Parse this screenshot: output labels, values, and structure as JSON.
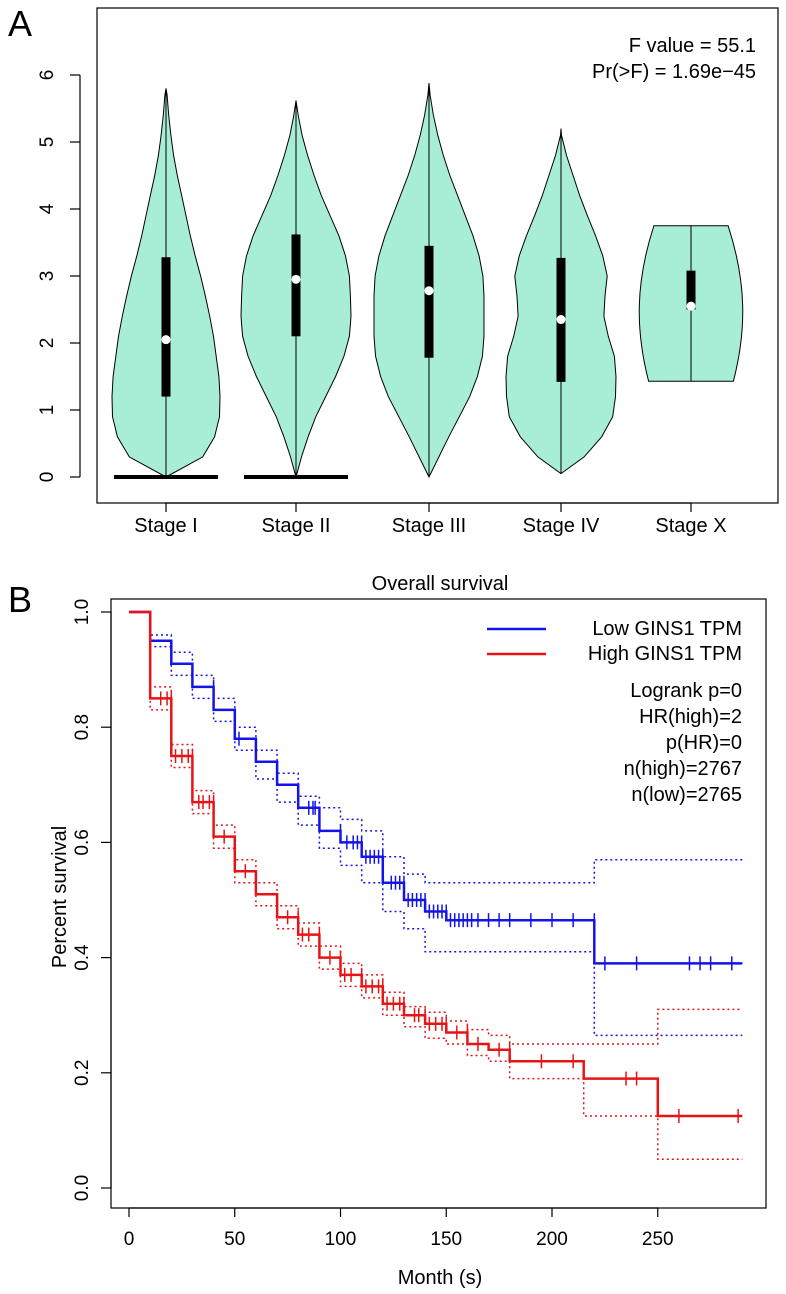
{
  "panels": {
    "a": {
      "label": "A"
    },
    "b": {
      "label": "B"
    }
  },
  "chart_data": [
    {
      "type": "violin",
      "title": "",
      "xlabel": "",
      "ylabel": "",
      "ylim": [
        0,
        6
      ],
      "yticks": [
        "0",
        "1",
        "2",
        "3",
        "4",
        "5",
        "6"
      ],
      "categories": [
        "Stage I",
        "Stage II",
        "Stage III",
        "Stage IV",
        "Stage X"
      ],
      "fill_color": "#a8eed6",
      "annotations": [
        "F value = 55.1",
        "Pr(>F) = 1.69e−45"
      ],
      "stats": [
        {
          "median": 2.05,
          "q1": 1.2,
          "q3": 3.28,
          "min": 0.0,
          "max": 5.8
        },
        {
          "median": 2.95,
          "q1": 2.1,
          "q3": 3.62,
          "min": 0.0,
          "max": 5.62
        },
        {
          "median": 2.78,
          "q1": 1.78,
          "q3": 3.45,
          "min": 0.0,
          "max": 5.88
        },
        {
          "median": 2.35,
          "q1": 1.42,
          "q3": 3.27,
          "min": 0.05,
          "max": 5.2
        },
        {
          "median": 2.55,
          "q1": 2.5,
          "q3": 3.08,
          "min": 1.43,
          "max": 3.75
        }
      ],
      "density_y": [
        0,
        0.3,
        0.6,
        0.9,
        1.2,
        1.5,
        1.8,
        2.1,
        2.4,
        2.7,
        3.0,
        3.3,
        3.6,
        3.9,
        4.2,
        4.5,
        4.8,
        5.1,
        5.4,
        5.7,
        6.0
      ],
      "density": [
        [
          0.5,
          0.68,
          0.9,
          0.99,
          1.0,
          0.98,
          0.93,
          0.88,
          0.81,
          0.73,
          0.64,
          0.54,
          0.45,
          0.37,
          0.29,
          0.21,
          0.14,
          0.09,
          0.05,
          0.02,
          0
        ],
        [
          0,
          0.1,
          0.22,
          0.36,
          0.54,
          0.72,
          0.87,
          0.97,
          1.0,
          0.99,
          0.97,
          0.9,
          0.78,
          0.62,
          0.46,
          0.33,
          0.21,
          0.11,
          0.04,
          0,
          0
        ],
        [
          0,
          0.18,
          0.36,
          0.55,
          0.74,
          0.88,
          0.97,
          1.0,
          1.0,
          1.0,
          0.98,
          0.91,
          0.8,
          0.66,
          0.52,
          0.38,
          0.26,
          0.16,
          0.08,
          0.02,
          0
        ],
        [
          0.05,
          0.42,
          0.74,
          0.94,
          0.99,
          1.0,
          0.97,
          0.86,
          0.78,
          0.8,
          0.84,
          0.76,
          0.63,
          0.48,
          0.34,
          0.22,
          0.1,
          0.01,
          0,
          0,
          0
        ],
        [
          0,
          0,
          0,
          0,
          0,
          0.84,
          0.79,
          0.72,
          0.87,
          0.99,
          0.99,
          0.85,
          0.71,
          0,
          0,
          0,
          0,
          0,
          0,
          0,
          0
        ]
      ],
      "baseline_bars": [
        true,
        true,
        false,
        false,
        false
      ]
    },
    {
      "type": "line",
      "subtype": "kaplan-meier",
      "title": "Overall survival",
      "xlabel": "Month (s)",
      "ylabel": "Percent survival",
      "xlim": [
        0,
        290
      ],
      "ylim": [
        0,
        1
      ],
      "xticks": [
        "0",
        "50",
        "100",
        "150",
        "200",
        "250"
      ],
      "yticks": [
        "0.0",
        "0.2",
        "0.4",
        "0.6",
        "0.8",
        "1.0"
      ],
      "legend_position": "top-right",
      "legend_text": [
        "Logrank p=0",
        "HR(high)=2",
        "p(HR)=0",
        "n(high)=2767",
        "n(low)=2765"
      ],
      "series": [
        {
          "name": "Low GINS1 TPM",
          "color": "#1414e6",
          "x": [
            0,
            10,
            20,
            30,
            40,
            50,
            60,
            70,
            80,
            90,
            100,
            110,
            120,
            130,
            140,
            150,
            160,
            170,
            180,
            190,
            200,
            210,
            220,
            230,
            240,
            250,
            260,
            270,
            280,
            290
          ],
          "y": [
            1.0,
            0.95,
            0.91,
            0.87,
            0.83,
            0.78,
            0.74,
            0.7,
            0.66,
            0.62,
            0.6,
            0.575,
            0.53,
            0.5,
            0.48,
            0.465,
            0.465,
            0.465,
            0.465,
            0.465,
            0.465,
            0.465,
            0.39,
            0.39,
            0.39,
            0.39,
            0.39,
            0.39,
            0.39,
            0.39
          ],
          "upper": [
            1.0,
            0.96,
            0.93,
            0.89,
            0.85,
            0.8,
            0.76,
            0.72,
            0.68,
            0.66,
            0.64,
            0.62,
            0.575,
            0.545,
            0.53,
            0.53,
            0.53,
            0.53,
            0.53,
            0.53,
            0.53,
            0.53,
            0.57,
            0.57,
            0.57,
            0.57,
            0.57,
            0.57,
            0.57,
            0.57
          ],
          "lower": [
            1.0,
            0.94,
            0.89,
            0.85,
            0.81,
            0.76,
            0.71,
            0.67,
            0.63,
            0.59,
            0.56,
            0.53,
            0.48,
            0.45,
            0.41,
            0.41,
            0.41,
            0.41,
            0.41,
            0.41,
            0.41,
            0.41,
            0.265,
            0.265,
            0.265,
            0.265,
            0.265,
            0.265,
            0.265,
            0.265
          ],
          "censor_x": [
            40,
            52,
            85,
            87,
            88,
            100,
            103,
            106,
            108,
            110,
            112,
            114,
            116,
            118,
            120,
            124,
            126,
            128,
            130,
            132,
            134,
            136,
            138,
            140,
            142,
            144,
            146,
            148,
            150,
            152,
            154,
            156,
            158,
            160,
            162,
            165,
            170,
            175,
            180,
            190,
            200,
            210,
            220,
            225,
            240,
            265,
            270,
            275,
            285
          ]
        },
        {
          "name": "High GINS1 TPM",
          "color": "#e61414",
          "x": [
            0,
            10,
            20,
            30,
            40,
            50,
            60,
            70,
            80,
            90,
            100,
            110,
            120,
            130,
            140,
            150,
            160,
            170,
            180,
            190,
            200,
            210,
            215,
            220,
            230,
            240,
            250,
            260,
            270,
            280,
            290
          ],
          "y": [
            1.0,
            0.85,
            0.75,
            0.67,
            0.61,
            0.55,
            0.51,
            0.47,
            0.44,
            0.4,
            0.37,
            0.35,
            0.32,
            0.3,
            0.285,
            0.27,
            0.25,
            0.24,
            0.22,
            0.22,
            0.22,
            0.22,
            0.19,
            0.19,
            0.19,
            0.19,
            0.125,
            0.125,
            0.125,
            0.125,
            0.125
          ],
          "upper": [
            1.0,
            0.87,
            0.77,
            0.69,
            0.63,
            0.57,
            0.53,
            0.49,
            0.46,
            0.42,
            0.39,
            0.37,
            0.34,
            0.315,
            0.305,
            0.29,
            0.275,
            0.265,
            0.25,
            0.25,
            0.25,
            0.25,
            0.25,
            0.25,
            0.25,
            0.25,
            0.31,
            0.31,
            0.31,
            0.31,
            0.31
          ],
          "lower": [
            1.0,
            0.83,
            0.73,
            0.65,
            0.59,
            0.53,
            0.49,
            0.45,
            0.42,
            0.38,
            0.35,
            0.33,
            0.3,
            0.28,
            0.26,
            0.25,
            0.23,
            0.22,
            0.19,
            0.19,
            0.19,
            0.19,
            0.125,
            0.125,
            0.125,
            0.125,
            0.05,
            0.05,
            0.05,
            0.05,
            0.05
          ],
          "censor_x": [
            15,
            18,
            20,
            22,
            25,
            28,
            30,
            33,
            35,
            38,
            40,
            45,
            55,
            75,
            80,
            82,
            85,
            90,
            95,
            100,
            102,
            105,
            110,
            112,
            115,
            118,
            120,
            122,
            125,
            128,
            130,
            135,
            137,
            140,
            142,
            145,
            148,
            150,
            155,
            160,
            165,
            175,
            180,
            195,
            210,
            235,
            240,
            260,
            288
          ]
        }
      ]
    }
  ]
}
